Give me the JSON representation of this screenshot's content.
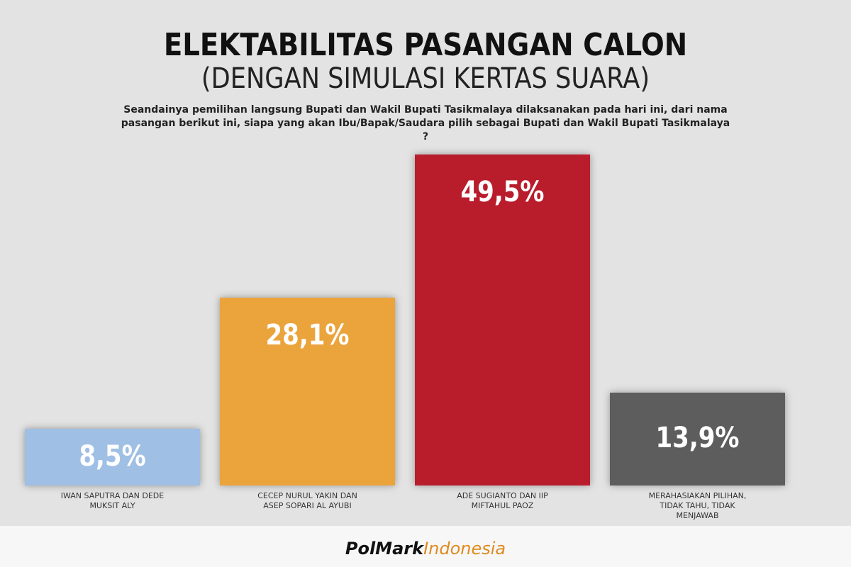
{
  "chart_data": {
    "type": "bar",
    "title": "ELEKTABILITAS PASANGAN CALON",
    "subtitle": "(DENGAN SIMULASI KERTAS SUARA)",
    "question": "Seandainya pemilihan langsung Bupati dan Wakil Bupati Tasikmalaya dilaksanakan pada hari ini, dari nama pasangan berikut ini, siapa yang akan Ibu/Bapak/Saudara pilih sebagai Bupati dan Wakil Bupati Tasikmalaya ?",
    "categories": [
      "IWAN SAPUTRA DAN DEDE MUKSIT ALY",
      "CECEP NURUL YAKIN DAN ASEP SOPARI AL AYUBI",
      "ADE SUGIANTO DAN IIP MIFTAHUL PAOZ",
      "MERAHASIAKAN PILIHAN, TIDAK TAHU, TIDAK MENJAWAB"
    ],
    "values": [
      8.5,
      28.1,
      49.5,
      13.9
    ],
    "value_labels": [
      "8,5%",
      "28,1%",
      "49,5%",
      "13,9%"
    ],
    "colors": [
      "#9fbfe4",
      "#eba43c",
      "#b91d2b",
      "#5d5d5d"
    ],
    "source": [
      "PolMark",
      "Indonesia"
    ]
  }
}
